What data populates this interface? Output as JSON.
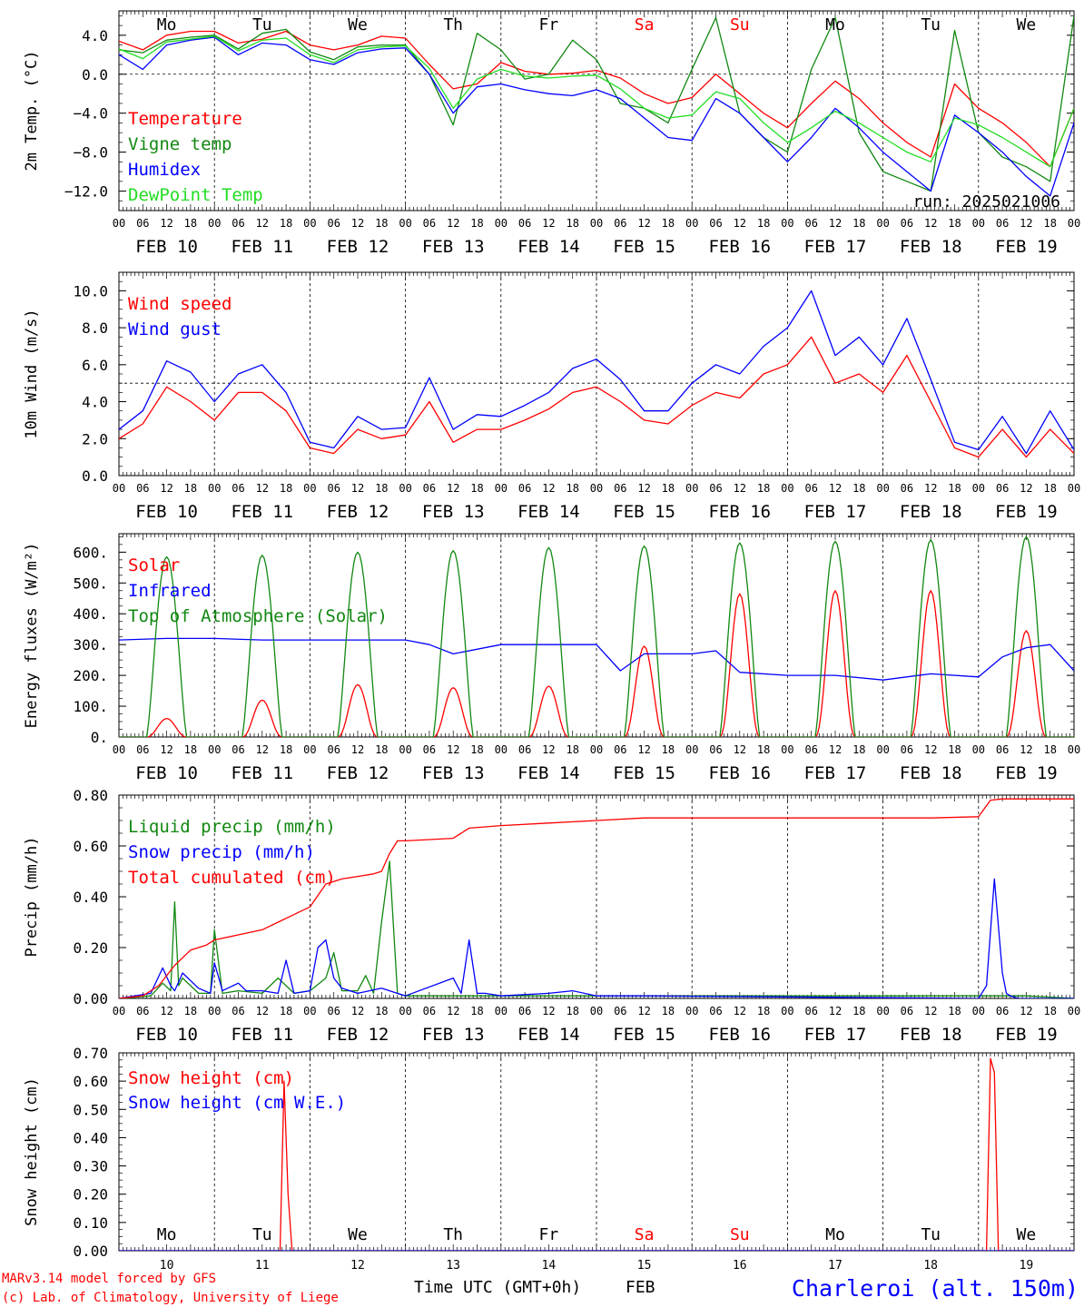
{
  "footer": {
    "credit_line1": "MARv3.14 model forced by GFS",
    "credit_line2": "(c) Lab. of Climatology, University of Liege",
    "xaxis_title": "Time UTC (GMT+0h)",
    "month": "FEB",
    "station": "Charleroi (alt. 150m)"
  },
  "colors": {
    "red": "#ff0000",
    "green": "#118811",
    "blue": "#0000ff",
    "lightgreen": "#22dd22",
    "weekend": "#ff0000",
    "axis": "#000000"
  },
  "days": [
    "Mo",
    "Tu",
    "We",
    "Th",
    "Fr",
    "Sa",
    "Su",
    "Mo",
    "Tu",
    "We"
  ],
  "weekend_days": [
    5,
    6
  ],
  "date_labels": [
    "FEB 10",
    "FEB 11",
    "FEB 12",
    "FEB 13",
    "FEB 14",
    "FEB 15",
    "FEB 16",
    "FEB 17",
    "FEB 18",
    "FEB 19"
  ],
  "day_numbers": [
    "10",
    "11",
    "12",
    "13",
    "14",
    "15",
    "16",
    "17",
    "18",
    "19"
  ],
  "hour_labels": [
    "00",
    "06",
    "12",
    "18"
  ],
  "chart_data": [
    {
      "type": "line",
      "ylabel": "2m Temp. (°C)",
      "ylim": [
        -14,
        6.5
      ],
      "yticks": [
        4.0,
        0.0,
        -4.0,
        -8.0,
        -12.0
      ],
      "ytick_labels": [
        "4.0",
        "0.0",
        "−4.0",
        "−8.0",
        "−12.0"
      ],
      "refline": 0,
      "annotation": "run: 2025021006",
      "x_hours": [
        0,
        6,
        12,
        18,
        24,
        30,
        36,
        42,
        48,
        54,
        60,
        66,
        72,
        78,
        84,
        90,
        96,
        102,
        108,
        114,
        120,
        126,
        132,
        138,
        144,
        150,
        156,
        162,
        168,
        174,
        180,
        186,
        192,
        198,
        204,
        210,
        216,
        222,
        228,
        234,
        240
      ],
      "series": [
        {
          "name": "Temperature",
          "color": "red",
          "values": [
            3.4,
            2.5,
            4.0,
            4.4,
            4.4,
            3.2,
            3.6,
            4.4,
            3.0,
            2.5,
            3.0,
            3.9,
            3.7,
            1.0,
            -1.5,
            -1.0,
            1.2,
            0.3,
            0.0,
            0.1,
            0.4,
            -0.4,
            -2.0,
            -3.0,
            -2.4,
            0.0,
            -2.0,
            -4.0,
            -5.5,
            -3.0,
            -0.7,
            -2.5,
            -5.0,
            -7.0,
            -8.5,
            -1.0,
            -3.5,
            -5.0,
            -7.0,
            -9.5,
            -3.5
          ]
        },
        {
          "name": "Vigne temp",
          "color": "green",
          "values": [
            2.5,
            2.2,
            3.5,
            3.8,
            4.0,
            2.6,
            4.2,
            4.6,
            2.3,
            1.5,
            2.8,
            3.0,
            3.0,
            0.0,
            -5.2,
            4.2,
            2.5,
            -0.5,
            0.0,
            3.5,
            1.5,
            -3.0,
            -3.5,
            -5.0,
            0.5,
            5.8,
            -4.0,
            -6.5,
            -8.0,
            0.5,
            5.8,
            -6.0,
            -10.0,
            -11.0,
            -12.0,
            4.5,
            -6.0,
            -8.5,
            -9.5,
            -11.0,
            6.0
          ]
        },
        {
          "name": "Humidex",
          "color": "blue",
          "values": [
            2.0,
            0.5,
            3.0,
            3.5,
            3.8,
            2.0,
            3.2,
            3.0,
            1.5,
            1.0,
            2.2,
            2.6,
            2.7,
            0.0,
            -4.0,
            -1.3,
            -1.0,
            -1.6,
            -2.0,
            -2.2,
            -1.6,
            -2.5,
            -4.5,
            -6.5,
            -6.8,
            -2.5,
            -4.0,
            -6.5,
            -9.0,
            -6.5,
            -3.5,
            -5.5,
            -8.0,
            -10.0,
            -12.0,
            -4.2,
            -6.0,
            -8.0,
            -10.5,
            -12.5,
            -5.0
          ]
        },
        {
          "name": "DewPoint Temp",
          "color": "lightgreen",
          "values": [
            2.6,
            1.6,
            3.3,
            3.6,
            3.9,
            2.4,
            3.5,
            3.7,
            2.0,
            1.2,
            2.5,
            2.8,
            2.9,
            0.6,
            -3.5,
            -0.5,
            0.5,
            -0.2,
            -0.4,
            -0.2,
            -0.1,
            -1.5,
            -3.5,
            -4.5,
            -4.2,
            -1.8,
            -2.5,
            -5.0,
            -7.0,
            -5.5,
            -3.8,
            -5.0,
            -6.5,
            -8.0,
            -9.0,
            -4.5,
            -5.2,
            -6.5,
            -8.0,
            -9.5,
            -3.5
          ]
        }
      ]
    },
    {
      "type": "line",
      "ylabel": "10m Wind (m/s)",
      "ylim": [
        0,
        11
      ],
      "yticks": [
        0,
        2,
        4,
        6,
        8,
        10
      ],
      "ytick_labels": [
        "0.0",
        "2.0",
        "4.0",
        "6.0",
        "8.0",
        "10.0"
      ],
      "refline": 5,
      "x_hours": [
        0,
        6,
        12,
        18,
        24,
        30,
        36,
        42,
        48,
        54,
        60,
        66,
        72,
        78,
        84,
        90,
        96,
        102,
        108,
        114,
        120,
        126,
        132,
        138,
        144,
        150,
        156,
        162,
        168,
        174,
        180,
        186,
        192,
        198,
        204,
        210,
        216,
        222,
        228,
        234,
        240
      ],
      "series": [
        {
          "name": "Wind speed",
          "color": "red",
          "values": [
            2.0,
            2.8,
            4.8,
            4.0,
            3.0,
            4.5,
            4.5,
            3.5,
            1.5,
            1.2,
            2.5,
            2.0,
            2.2,
            4.0,
            1.8,
            2.5,
            2.5,
            3.0,
            3.6,
            4.5,
            4.8,
            4.0,
            3.0,
            2.8,
            3.8,
            4.5,
            4.2,
            5.5,
            6.0,
            7.5,
            5.0,
            5.5,
            4.5,
            6.5,
            4.0,
            1.5,
            1.0,
            2.5,
            1.0,
            2.5,
            1.2
          ]
        },
        {
          "name": "Wind gust",
          "color": "blue",
          "values": [
            2.5,
            3.5,
            6.2,
            5.6,
            4.0,
            5.5,
            6.0,
            4.5,
            1.8,
            1.5,
            3.2,
            2.5,
            2.6,
            5.3,
            2.5,
            3.3,
            3.2,
            3.8,
            4.5,
            5.8,
            6.3,
            5.2,
            3.5,
            3.5,
            5.0,
            6.0,
            5.5,
            7.0,
            8.0,
            10.0,
            6.5,
            7.5,
            6.0,
            8.5,
            5.2,
            1.8,
            1.4,
            3.2,
            1.2,
            3.5,
            1.4
          ]
        }
      ]
    },
    {
      "type": "line",
      "ylabel": "Energy fluxes (W/m²)",
      "ylim": [
        0,
        660
      ],
      "yticks": [
        0,
        100,
        200,
        300,
        400,
        500,
        600
      ],
      "ytick_labels": [
        "0.",
        "100.",
        "200.",
        "300.",
        "400.",
        "500.",
        "600."
      ],
      "series": [
        {
          "name": "Solar",
          "color": "red",
          "peaks": [
            60,
            120,
            170,
            160,
            165,
            295,
            465,
            475,
            475,
            345
          ]
        },
        {
          "name": "Infrared",
          "color": "blue",
          "x_hours": [
            0,
            12,
            24,
            36,
            48,
            60,
            72,
            78,
            84,
            96,
            108,
            120,
            126,
            132,
            144,
            150,
            156,
            168,
            180,
            192,
            204,
            216,
            222,
            228,
            234,
            240
          ],
          "values": [
            315,
            320,
            320,
            315,
            315,
            315,
            315,
            300,
            270,
            300,
            300,
            300,
            215,
            270,
            270,
            280,
            210,
            200,
            200,
            185,
            205,
            195,
            260,
            290,
            300,
            215
          ]
        },
        {
          "name": "Top of Atmosphere (Solar)",
          "color": "green",
          "peaks": [
            585,
            590,
            600,
            605,
            615,
            620,
            630,
            635,
            640,
            650
          ]
        }
      ]
    },
    {
      "type": "line",
      "ylabel": "Precip (mm/h)",
      "ylim": [
        0,
        0.8
      ],
      "yticks": [
        0,
        0.2,
        0.4,
        0.6,
        0.8
      ],
      "ytick_labels": [
        "0.00",
        "0.20",
        "0.40",
        "0.60",
        "0.80"
      ],
      "series": [
        {
          "name": "Liquid precip (mm/h)",
          "color": "green",
          "x_hours": [
            0,
            8,
            11,
            13,
            14,
            15,
            16,
            20,
            23,
            24,
            26,
            30,
            36,
            40,
            44,
            48,
            52,
            54,
            56,
            60,
            62,
            64,
            66,
            68,
            70,
            72,
            228,
            240
          ],
          "values": [
            0,
            0.01,
            0.06,
            0.03,
            0.38,
            0.05,
            0.08,
            0.02,
            0.02,
            0.27,
            0.02,
            0.03,
            0.02,
            0.08,
            0.02,
            0.03,
            0.08,
            0.18,
            0.03,
            0.03,
            0.09,
            0.02,
            0.3,
            0.54,
            0.02,
            0.01,
            0.01,
            0
          ]
        },
        {
          "name": "Snow precip (mm/h)",
          "color": "blue",
          "x_hours": [
            0,
            8,
            11,
            13,
            14,
            16,
            20,
            23,
            24,
            26,
            30,
            32,
            36,
            40,
            42,
            44,
            48,
            50,
            52,
            54,
            56,
            60,
            66,
            68,
            72,
            84,
            86,
            88,
            90,
            92,
            96,
            108,
            114,
            120,
            132,
            216,
            218,
            220,
            222,
            223,
            224,
            226,
            240
          ],
          "values": [
            0,
            0.02,
            0.12,
            0.05,
            0.03,
            0.1,
            0.04,
            0.02,
            0.14,
            0.03,
            0.06,
            0.03,
            0.03,
            0.02,
            0.15,
            0.02,
            0.03,
            0.2,
            0.23,
            0.08,
            0.04,
            0.02,
            0.04,
            0.03,
            0.01,
            0.08,
            0.02,
            0.23,
            0.02,
            0.02,
            0.01,
            0.02,
            0.03,
            0.01,
            0.01,
            0,
            0.05,
            0.47,
            0.1,
            0.02,
            0.01,
            0,
            0
          ]
        },
        {
          "name": "Total cumulated (cm)",
          "color": "red",
          "x_hours": [
            0,
            6,
            10,
            14,
            18,
            22,
            24,
            30,
            36,
            40,
            44,
            48,
            52,
            56,
            60,
            64,
            66,
            68,
            70,
            72,
            84,
            88,
            96,
            108,
            120,
            132,
            144,
            156,
            168,
            180,
            192,
            204,
            216,
            219,
            222,
            240
          ],
          "values": [
            0,
            0.01,
            0.05,
            0.13,
            0.19,
            0.21,
            0.23,
            0.25,
            0.27,
            0.3,
            0.33,
            0.36,
            0.45,
            0.47,
            0.48,
            0.49,
            0.5,
            0.57,
            0.62,
            0.62,
            0.63,
            0.67,
            0.68,
            0.69,
            0.7,
            0.71,
            0.71,
            0.71,
            0.71,
            0.71,
            0.71,
            0.71,
            0.715,
            0.78,
            0.785,
            0.785
          ]
        }
      ]
    },
    {
      "type": "line",
      "ylabel": "Snow height (cm)",
      "ylim": [
        0,
        0.7
      ],
      "yticks": [
        0,
        0.1,
        0.2,
        0.3,
        0.4,
        0.5,
        0.6,
        0.7
      ],
      "ytick_labels": [
        "0.00",
        "0.10",
        "0.20",
        "0.30",
        "0.40",
        "0.50",
        "0.60",
        "0.70"
      ],
      "series": [
        {
          "name": "Snow height (cm)",
          "color": "red",
          "x_hours": [
            0,
            40.5,
            41.5,
            42.5,
            43.5,
            218,
            219,
            220,
            221,
            240
          ],
          "values": [
            0,
            0,
            0.6,
            0.2,
            0,
            0,
            0.68,
            0.63,
            0,
            0
          ]
        },
        {
          "name": "Snow height (cm W.E.)",
          "color": "blue",
          "x_hours": [
            0,
            240
          ],
          "values": [
            0,
            0
          ]
        }
      ]
    }
  ]
}
